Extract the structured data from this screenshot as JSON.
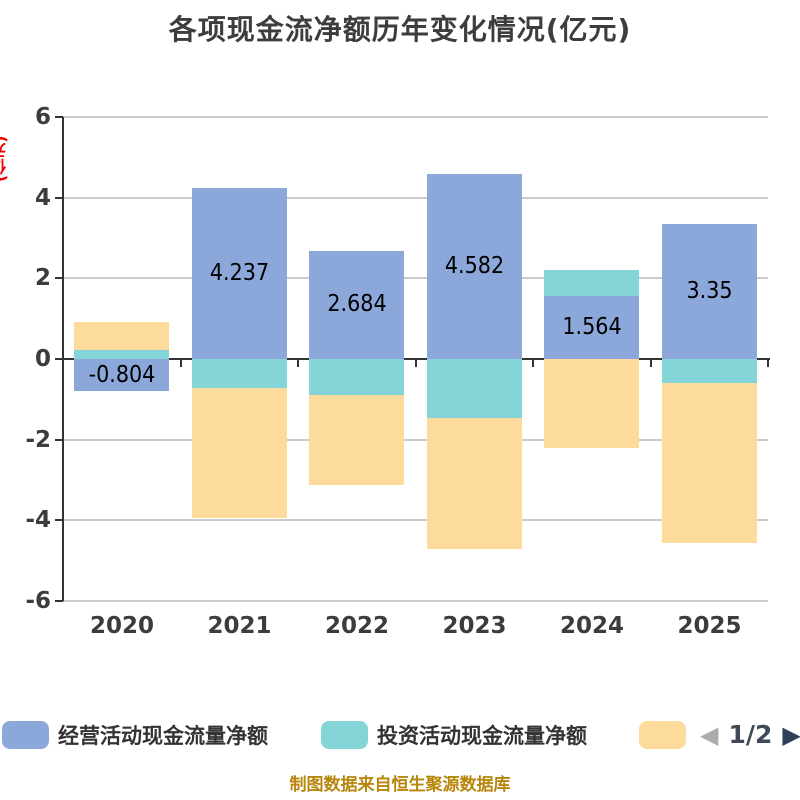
{
  "title": "各项现金流净额历年变化情况(亿元)",
  "y_axis": {
    "unit_label": "(亿元)",
    "ticks": [
      "6",
      "4",
      "2",
      "0",
      "-2",
      "-4",
      "-6"
    ],
    "min": -6,
    "max": 6,
    "interval": 2
  },
  "chart_data": {
    "type": "bar",
    "stacked": true,
    "title": "各项现金流净额历年变化情况(亿元)",
    "ylabel": "(亿元)",
    "ylim": [
      -6,
      6
    ],
    "grid": true,
    "legend_position": "bottom",
    "categories": [
      "2020",
      "2021",
      "2022",
      "2023",
      "2024",
      "2025"
    ],
    "series": [
      {
        "name": "经营活动现金流量净额",
        "color": "#8CA8DB",
        "values": [
          -0.804,
          4.237,
          2.684,
          4.582,
          1.564,
          3.35
        ],
        "labels": [
          "-0.804",
          "4.237",
          "2.684",
          "4.582",
          "1.564",
          "3.35"
        ]
      },
      {
        "name": "投资活动现金流量净额",
        "color": "#85D5D8",
        "values": [
          0.22,
          -0.71,
          -0.89,
          -1.47,
          0.64,
          -0.6
        ]
      },
      {
        "name": "",
        "color": "#FDDB9D",
        "values": [
          0.7,
          -3.23,
          -2.24,
          -3.25,
          -2.2,
          -3.97
        ]
      }
    ]
  },
  "legend": {
    "items": [
      {
        "label": "经营活动现金流量净额",
        "color": "#8CA8DB"
      },
      {
        "label": "投资活动现金流量净额",
        "color": "#85D5D8"
      },
      {
        "label": "",
        "color": "#FDDB9D"
      }
    ],
    "pagination": {
      "prev_icon": "◀",
      "current": "1/2",
      "next_icon": "▶"
    }
  },
  "footer": {
    "caption": "制图数据来自恒生聚源数据库"
  },
  "colors": {
    "background": "#FFFFFF",
    "title_text": "#3D3D3D",
    "axis_text": "#3C3C3C",
    "axis_line": "#333333",
    "gridline": "#CBCBCB",
    "bar_label_text": "#000000",
    "y_unit_text": "#EC0000",
    "caption_text": "#B8860B",
    "pager_prev": "#ACACAC",
    "pager_page": "#3E4A58",
    "pager_next": "#2E4257"
  }
}
